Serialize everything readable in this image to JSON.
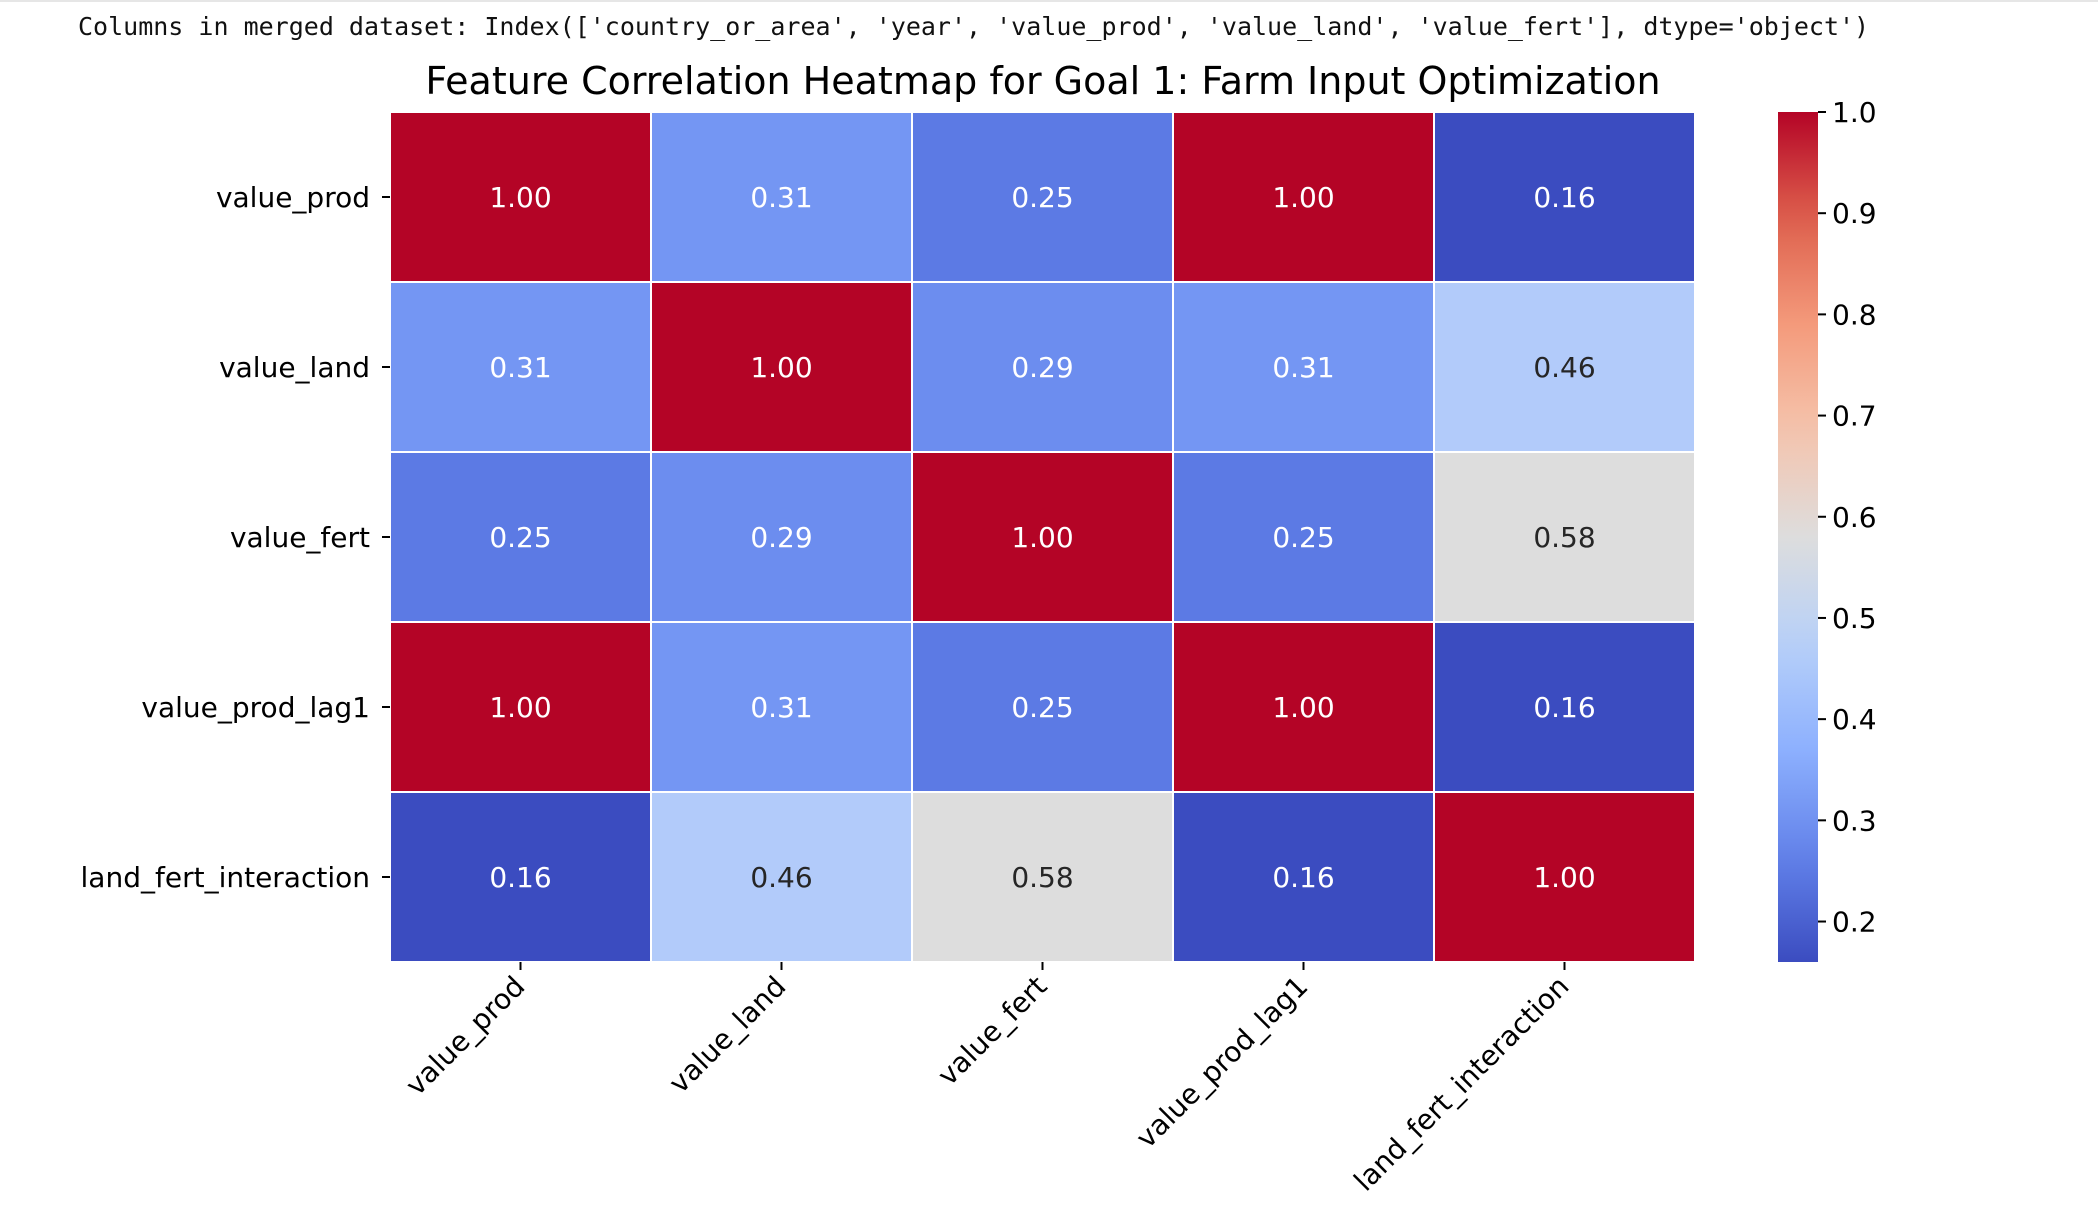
{
  "output": {
    "text": "Columns in merged dataset: Index(['country_or_area', 'year', 'value_prod', 'value_land', 'value_fert'], dtype='object')"
  },
  "chart_data": {
    "type": "heatmap",
    "title": "Feature Correlation Heatmap for Goal 1: Farm Input Optimization",
    "xlabel": "",
    "ylabel": "",
    "row_labels": [
      "value_prod",
      "value_land",
      "value_fert",
      "value_prod_lag1",
      "land_fert_interaction"
    ],
    "col_labels": [
      "value_prod",
      "value_land",
      "value_fert",
      "value_prod_lag1",
      "land_fert_interaction"
    ],
    "values": [
      [
        1.0,
        0.31,
        0.25,
        1.0,
        0.16
      ],
      [
        0.31,
        1.0,
        0.29,
        0.31,
        0.46
      ],
      [
        0.25,
        0.29,
        1.0,
        0.25,
        0.58
      ],
      [
        1.0,
        0.31,
        0.25,
        1.0,
        0.16
      ],
      [
        0.16,
        0.46,
        0.58,
        0.16,
        1.0
      ]
    ],
    "value_format": "0.00",
    "colormap": "coolwarm",
    "color_range": [
      0.16,
      1.0
    ],
    "colorbar_ticks": [
      "0.2",
      "0.3",
      "0.4",
      "0.5",
      "0.6",
      "0.7",
      "0.8",
      "0.9",
      "1.0"
    ],
    "colorbar_position": "right",
    "colors": {
      "cell_border": "#ffffff",
      "high": "#b40426",
      "mid": "#dddcdc",
      "low": "#3b4cc0"
    }
  }
}
